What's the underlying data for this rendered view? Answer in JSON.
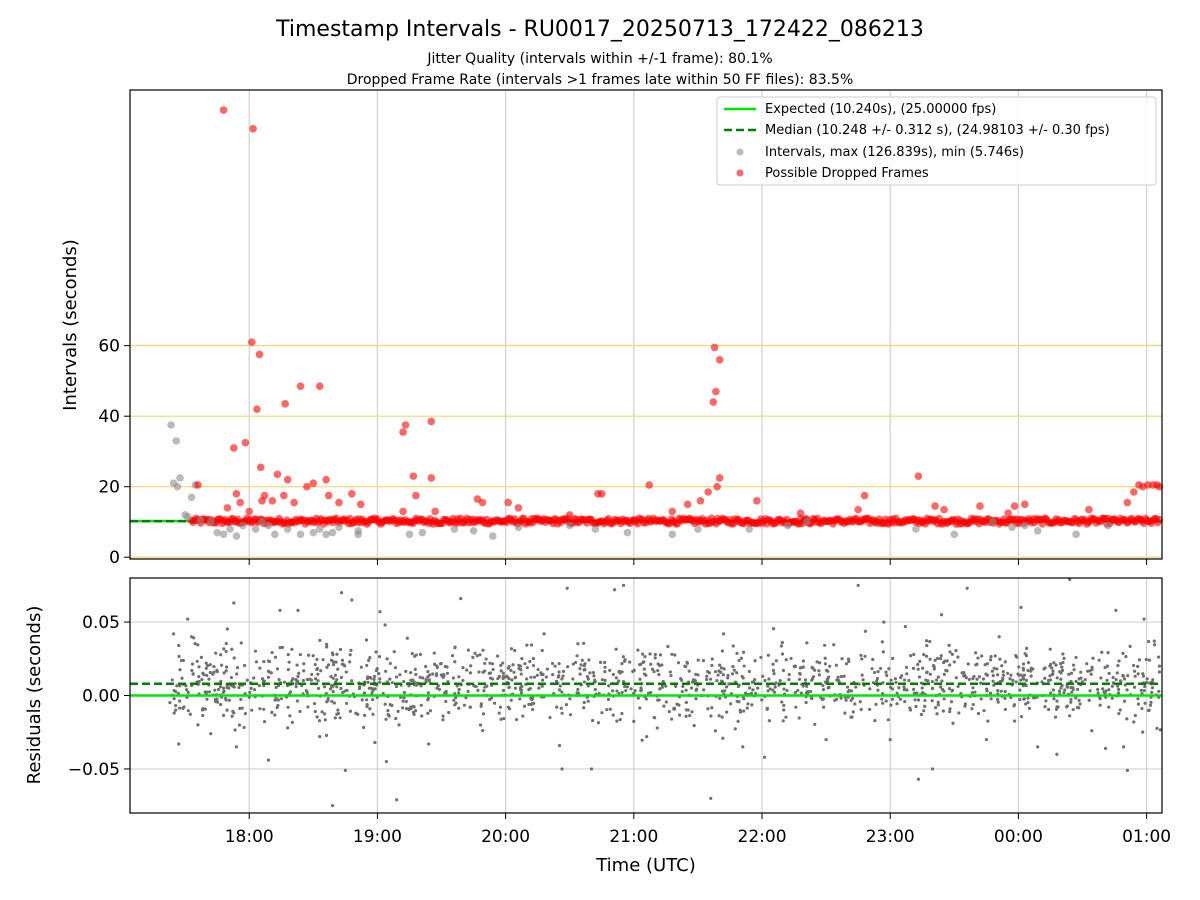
{
  "chart_data": [
    {
      "type": "scatter",
      "title": "Timestamp Intervals - RU0017_20250713_172422_086213",
      "subtitle_lines": [
        "Jitter Quality (intervals within +/-1 frame): 80.1%",
        "Dropped Frame Rate (intervals >1 frames late within 50 FF files): 83.5%"
      ],
      "xlabel": "",
      "ylabel": "Intervals (seconds)",
      "x_unit": "hours since 17:00 UTC",
      "xlim": [
        0.07,
        8.12
      ],
      "ylim": [
        -0.5,
        132.5
      ],
      "yticks": [
        0,
        20,
        40,
        60
      ],
      "xticks": [
        {
          "value": 1,
          "label": "18:00"
        },
        {
          "value": 2,
          "label": "19:00"
        },
        {
          "value": 3,
          "label": "20:00"
        },
        {
          "value": 4,
          "label": "21:00"
        },
        {
          "value": 5,
          "label": "22:00"
        },
        {
          "value": 6,
          "label": "23:00"
        },
        {
          "value": 7,
          "label": "00:00"
        },
        {
          "value": 8,
          "label": "01:00"
        }
      ],
      "grid": true,
      "hlines": [
        {
          "y": 20,
          "color": "#ffd266"
        },
        {
          "y": 40,
          "color": "#ffd266"
        },
        {
          "y": 60,
          "color": "#ffd266"
        }
      ],
      "legend_position": "upper right",
      "series": [
        {
          "name": "Expected (10.240s), (25.00000 fps)",
          "kind": "line",
          "y": 10.24,
          "color": "#00e600",
          "style": "solid"
        },
        {
          "name": "Median (10.248 +/- 0.312 s), (24.98103 +/- 0.30 fps)",
          "kind": "line",
          "y": 10.248,
          "color": "#007f00",
          "style": "dashed"
        },
        {
          "name": "Intervals, max (126.839s), min (5.746s)",
          "kind": "scatter",
          "color": "#8c8c8c",
          "opacity": 0.6,
          "points": [
            [
              0.39,
              37.5
            ],
            [
              0.41,
              21
            ],
            [
              0.43,
              33
            ],
            [
              0.44,
              20
            ],
            [
              0.46,
              22.5
            ],
            [
              0.5,
              12
            ],
            [
              0.52,
              11.5
            ],
            [
              0.55,
              17
            ],
            [
              0.58,
              20.5
            ],
            [
              0.62,
              10.5
            ],
            [
              0.7,
              10
            ],
            [
              0.75,
              7
            ],
            [
              0.8,
              6.5
            ],
            [
              0.85,
              8
            ],
            [
              0.9,
              6
            ],
            [
              0.95,
              9
            ],
            [
              1.05,
              8
            ],
            [
              1.1,
              10
            ],
            [
              1.15,
              9
            ],
            [
              1.2,
              6.5
            ],
            [
              1.3,
              8
            ],
            [
              1.4,
              6.5
            ],
            [
              1.5,
              7
            ],
            [
              1.55,
              8
            ],
            [
              1.6,
              6.5
            ],
            [
              1.65,
              7
            ],
            [
              1.7,
              8.5
            ],
            [
              1.85,
              6.5
            ],
            [
              1.85,
              7.5
            ],
            [
              2.25,
              6.5
            ],
            [
              2.35,
              7
            ],
            [
              2.6,
              8
            ],
            [
              2.75,
              7.5
            ],
            [
              2.9,
              6
            ],
            [
              3.1,
              8.5
            ],
            [
              3.5,
              9
            ],
            [
              3.7,
              8
            ],
            [
              3.95,
              7
            ],
            [
              4.3,
              6.5
            ],
            [
              4.5,
              8
            ],
            [
              4.9,
              8
            ],
            [
              5.2,
              9
            ],
            [
              5.35,
              10
            ],
            [
              6.2,
              8
            ],
            [
              6.5,
              6.5
            ],
            [
              6.8,
              10
            ],
            [
              6.95,
              8.5
            ],
            [
              7.05,
              9
            ],
            [
              7.15,
              7.5
            ],
            [
              7.45,
              6.5
            ],
            [
              7.7,
              9
            ]
          ]
        },
        {
          "name": "Possible Dropped Frames",
          "kind": "scatter",
          "color": "#ff0000",
          "opacity": 0.6,
          "points": [
            [
              0.6,
              20.5
            ],
            [
              0.8,
              126.8
            ],
            [
              0.83,
              14
            ],
            [
              0.88,
              31
            ],
            [
              0.9,
              18
            ],
            [
              0.93,
              15.5
            ],
            [
              0.97,
              32.5
            ],
            [
              1.0,
              13
            ],
            [
              1.02,
              61
            ],
            [
              1.03,
              121.5
            ],
            [
              1.06,
              42
            ],
            [
              1.08,
              57.5
            ],
            [
              1.09,
              25.5
            ],
            [
              1.1,
              16
            ],
            [
              1.12,
              17.5
            ],
            [
              1.18,
              16
            ],
            [
              1.22,
              23.5
            ],
            [
              1.27,
              17.5
            ],
            [
              1.28,
              43.5
            ],
            [
              1.3,
              22
            ],
            [
              1.35,
              15.5
            ],
            [
              1.4,
              48.5
            ],
            [
              1.45,
              20
            ],
            [
              1.5,
              21
            ],
            [
              1.55,
              48.5
            ],
            [
              1.6,
              22
            ],
            [
              1.62,
              17.5
            ],
            [
              1.7,
              15.5
            ],
            [
              1.8,
              18
            ],
            [
              1.87,
              15
            ],
            [
              2.2,
              13
            ],
            [
              2.2,
              35.5
            ],
            [
              2.22,
              37.5
            ],
            [
              2.28,
              23
            ],
            [
              2.3,
              17.5
            ],
            [
              2.45,
              13
            ],
            [
              2.42,
              38.5
            ],
            [
              2.42,
              22.5
            ],
            [
              2.78,
              16.5
            ],
            [
              2.82,
              15.5
            ],
            [
              3.02,
              15.5
            ],
            [
              3.1,
              14
            ],
            [
              3.5,
              12
            ],
            [
              3.72,
              18
            ],
            [
              3.75,
              18
            ],
            [
              4.12,
              20.5
            ],
            [
              4.3,
              13
            ],
            [
              4.42,
              15
            ],
            [
              4.52,
              16
            ],
            [
              4.58,
              18.5
            ],
            [
              4.62,
              44
            ],
            [
              4.63,
              59.5
            ],
            [
              4.67,
              56
            ],
            [
              4.64,
              47
            ],
            [
              4.65,
              20
            ],
            [
              4.67,
              22.5
            ],
            [
              4.96,
              16
            ],
            [
              5.3,
              12.5
            ],
            [
              5.8,
              17.5
            ],
            [
              5.75,
              13.5
            ],
            [
              6.22,
              23
            ],
            [
              6.35,
              14.5
            ],
            [
              6.42,
              13.5
            ],
            [
              6.7,
              14.5
            ],
            [
              6.92,
              12.5
            ],
            [
              6.97,
              14.5
            ],
            [
              7.05,
              15
            ],
            [
              7.55,
              13.5
            ],
            [
              7.85,
              15.5
            ],
            [
              7.9,
              18.5
            ],
            [
              7.94,
              20.5
            ],
            [
              7.97,
              20
            ],
            [
              8.01,
              20.5
            ],
            [
              8.05,
              20.5
            ],
            [
              8.08,
              20.5
            ],
            [
              8.1,
              20
            ]
          ]
        }
      ]
    },
    {
      "type": "scatter",
      "title": "",
      "xlabel": "Time (UTC)",
      "ylabel": "Residuals (seconds)",
      "x_unit": "hours since 17:00 UTC",
      "xlim": [
        0.07,
        8.12
      ],
      "ylim": [
        -0.08,
        0.08
      ],
      "yticks": [
        0.05,
        0.0,
        -0.05
      ],
      "ytick_labels": [
        "0.05",
        "0.00",
        "−0.05"
      ],
      "xticks": [
        {
          "value": 1,
          "label": "18:00"
        },
        {
          "value": 2,
          "label": "19:00"
        },
        {
          "value": 3,
          "label": "20:00"
        },
        {
          "value": 4,
          "label": "21:00"
        },
        {
          "value": 5,
          "label": "22:00"
        },
        {
          "value": 6,
          "label": "23:00"
        },
        {
          "value": 7,
          "label": "00:00"
        },
        {
          "value": 8,
          "label": "01:00"
        }
      ],
      "grid": true,
      "series": [
        {
          "name": "expected",
          "kind": "line",
          "y": 0.0,
          "color": "#00e600",
          "style": "solid"
        },
        {
          "name": "median",
          "kind": "line",
          "y": 0.008,
          "color": "#007f00",
          "style": "dashed"
        },
        {
          "name": "residuals",
          "kind": "scatter",
          "color": "#707070",
          "points": [
            [
              0.41,
              0.042
            ],
            [
              0.45,
              -0.033
            ],
            [
              0.52,
              0.052
            ],
            [
              0.55,
              0.04
            ],
            [
              0.6,
              -0.02
            ],
            [
              0.7,
              -0.026
            ],
            [
              0.8,
              0.005
            ],
            [
              0.82,
              0.03
            ],
            [
              0.88,
              0.063
            ],
            [
              0.9,
              -0.035
            ],
            [
              1.02,
              -0.01
            ],
            [
              1.15,
              -0.044
            ],
            [
              1.24,
              0.058
            ],
            [
              1.3,
              -0.022
            ],
            [
              1.38,
              0.058
            ],
            [
              1.55,
              -0.028
            ],
            [
              1.65,
              -0.075
            ],
            [
              1.72,
              0.07
            ],
            [
              1.75,
              -0.051
            ],
            [
              1.8,
              0.065
            ],
            [
              1.98,
              -0.032
            ],
            [
              2.02,
              0.057
            ],
            [
              2.06,
              0.048
            ],
            [
              2.07,
              -0.045
            ],
            [
              2.15,
              -0.071
            ],
            [
              2.4,
              -0.033
            ],
            [
              2.65,
              0.066
            ],
            [
              2.95,
              -0.012
            ],
            [
              3.3,
              0.042
            ],
            [
              3.42,
              -0.034
            ],
            [
              3.44,
              -0.05
            ],
            [
              3.48,
              0.073
            ],
            [
              3.67,
              -0.05
            ],
            [
              3.85,
              0.072
            ],
            [
              3.92,
              0.075
            ],
            [
              4.1,
              -0.028
            ],
            [
              4.48,
              0.01
            ],
            [
              4.6,
              -0.07
            ],
            [
              4.7,
              0.042
            ],
            [
              4.85,
              -0.035
            ],
            [
              5.02,
              -0.042
            ],
            [
              5.26,
              0.02
            ],
            [
              5.5,
              -0.03
            ],
            [
              5.75,
              0.075
            ],
            [
              5.95,
              0.05
            ],
            [
              6.0,
              -0.03
            ],
            [
              6.22,
              -0.057
            ],
            [
              6.33,
              -0.05
            ],
            [
              6.4,
              0.055
            ],
            [
              6.6,
              0.073
            ],
            [
              6.75,
              -0.03
            ],
            [
              6.85,
              0.04
            ],
            [
              7.02,
              0.06
            ],
            [
              7.15,
              -0.035
            ],
            [
              7.3,
              -0.04
            ],
            [
              7.4,
              0.079
            ],
            [
              7.68,
              -0.036
            ],
            [
              7.76,
              0.058
            ],
            [
              7.82,
              -0.035
            ],
            [
              7.85,
              -0.051
            ],
            [
              7.9,
              -0.018
            ],
            [
              7.98,
              0.052
            ],
            [
              8.02,
              -0.01
            ],
            [
              8.06,
              0.037
            ],
            [
              8.1,
              0.02
            ]
          ]
        }
      ]
    }
  ]
}
